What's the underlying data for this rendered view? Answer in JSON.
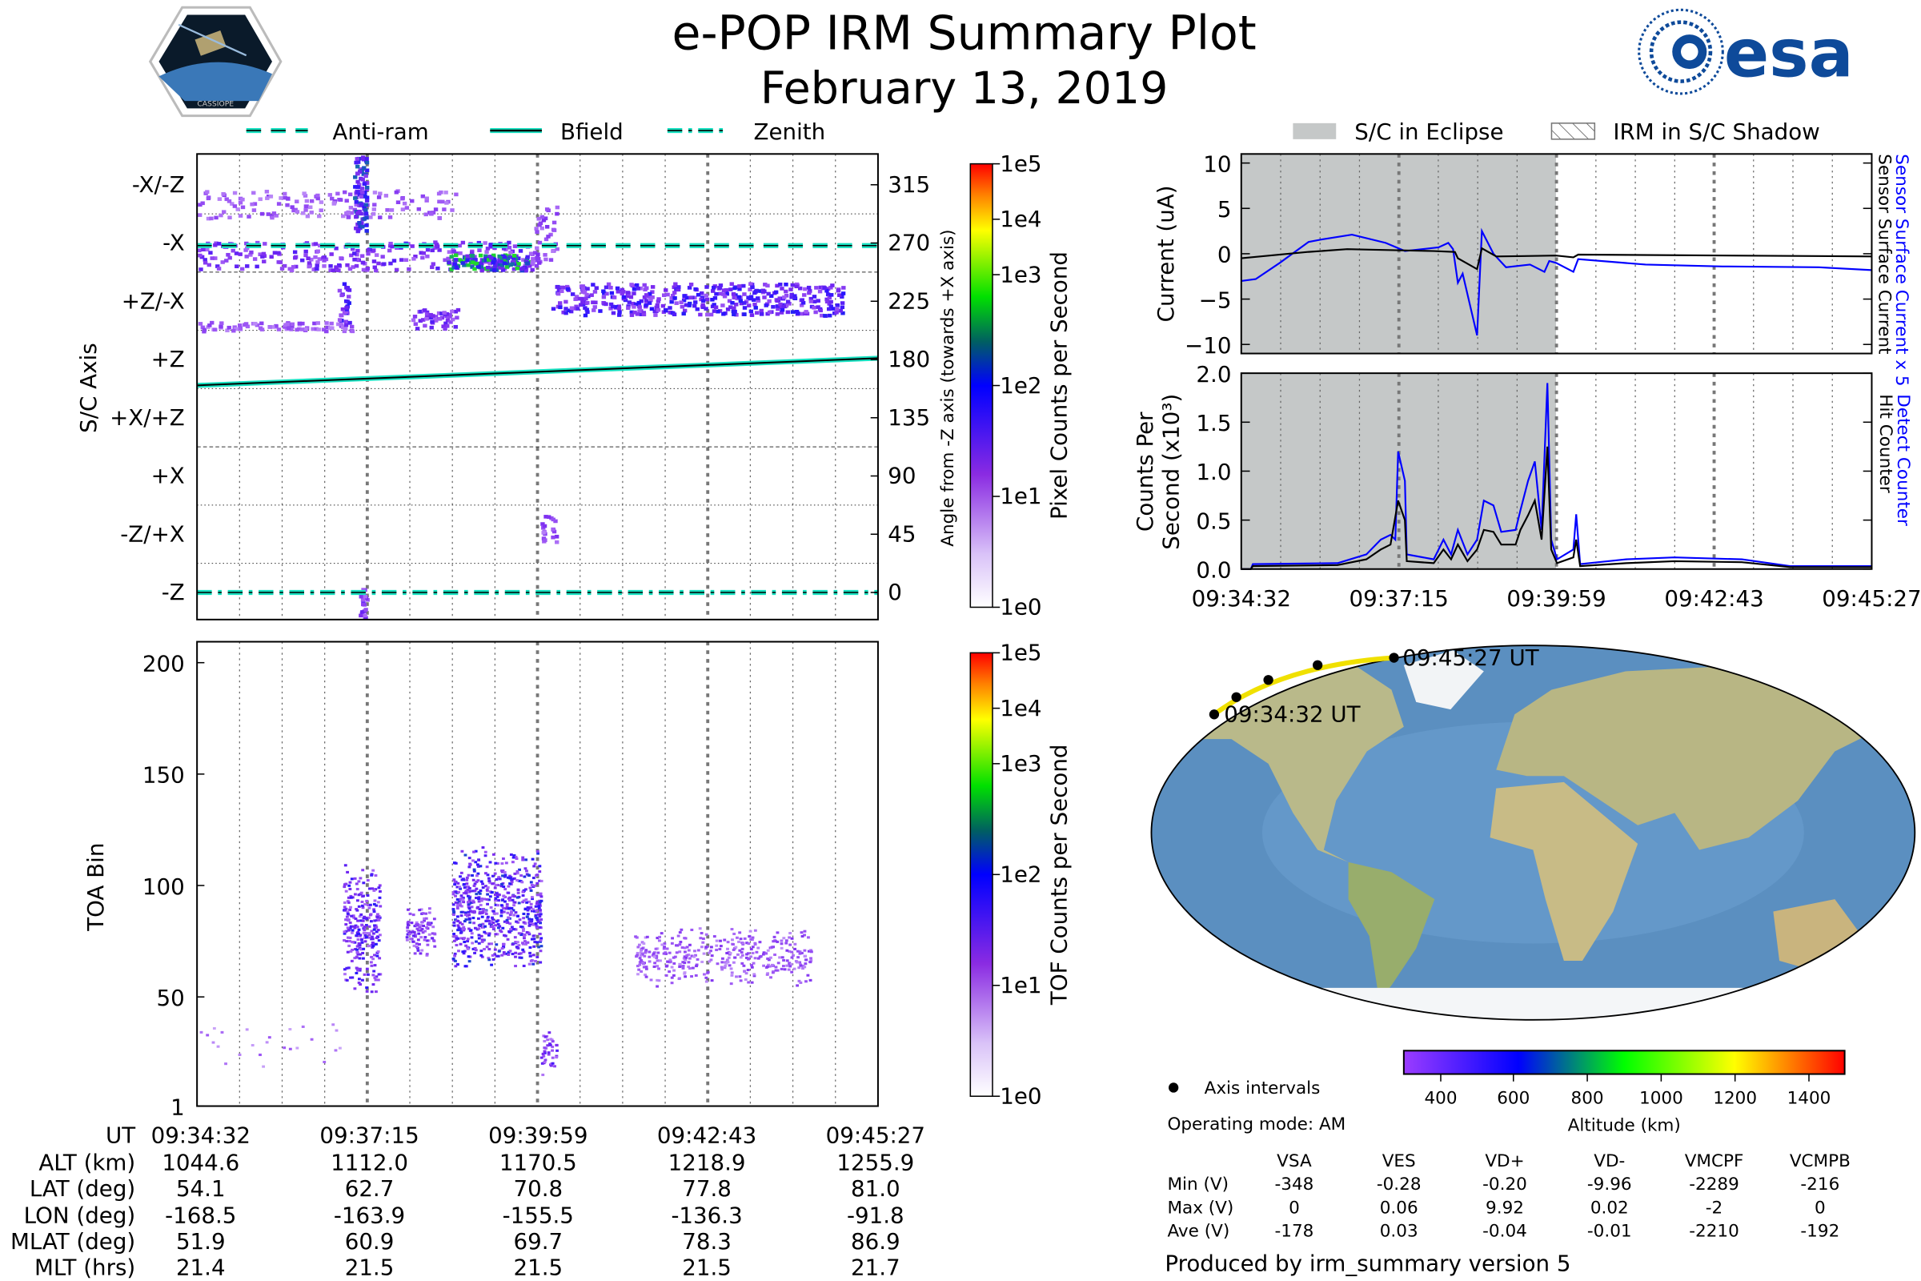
{
  "header": {
    "title": "e-POP IRM Summary Plot",
    "date": "February 13, 2019",
    "left_logo": "CASSIOPE",
    "right_logo": "esa"
  },
  "colors": {
    "blue_series": "#0000ff",
    "black_series": "#000000",
    "eclipse": "#c5c8c8",
    "bfield": "#17e0c0",
    "track": "#f0e000"
  },
  "chart_data": [
    {
      "id": "sc-axis",
      "type": "heatmap",
      "legend": [
        "Anti-ram",
        "Bfield",
        "Zenith"
      ],
      "ylabel": "S/C Axis",
      "ylabel_right": "Angle from -Z axis (towards +X axis)",
      "axis_labels": [
        "-X/-Z",
        "-X",
        "+Z/-X",
        "+Z",
        "+X/+Z",
        "+X",
        "-Z/+X",
        "-Z"
      ],
      "right_ticks": [
        "315",
        "270",
        "225",
        "180",
        "135",
        "90",
        "45",
        "0"
      ],
      "right_tick_values": [
        315,
        270,
        225,
        180,
        135,
        90,
        45,
        0
      ],
      "ylim": [
        -21,
        339
      ],
      "xlim_seconds": [
        0,
        655
      ],
      "antiram_angle": 268,
      "zenith_angle": 0,
      "bfield": [
        [
          0,
          160
        ],
        [
          655,
          181
        ]
      ],
      "patches": [
        {
          "t": [
            0,
            250
          ],
          "a": [
            290,
            312
          ],
          "n": 140,
          "i": 0.35
        },
        {
          "t": [
            150,
            162
          ],
          "a": [
            280,
            339
          ],
          "n": 90,
          "i": 0.7
        },
        {
          "t": [
            0,
            330
          ],
          "a": [
            250,
            272
          ],
          "n": 260,
          "i": 0.5
        },
        {
          "t": [
            240,
            320
          ],
          "a": [
            250,
            262
          ],
          "n": 140,
          "i": 0.9
        },
        {
          "t": [
            320,
            345
          ],
          "a": [
            255,
            300
          ],
          "n": 40,
          "i": 0.4
        },
        {
          "t": [
            340,
            620
          ],
          "a": [
            215,
            240
          ],
          "n": 420,
          "i": 0.6
        },
        {
          "t": [
            0,
            150
          ],
          "a": [
            203,
            210
          ],
          "n": 80,
          "i": 0.35
        },
        {
          "t": [
            135,
            145
          ],
          "a": [
            208,
            240
          ],
          "n": 30,
          "i": 0.6
        },
        {
          "t": [
            205,
            250
          ],
          "a": [
            205,
            220
          ],
          "n": 50,
          "i": 0.5
        },
        {
          "t": [
            330,
            345
          ],
          "a": [
            40,
            60
          ],
          "n": 20,
          "i": 0.4
        },
        {
          "t": [
            155,
            162
          ],
          "a": [
            -21,
            10
          ],
          "n": 20,
          "i": 0.5
        }
      ],
      "colorbar": {
        "label": "Pixel Counts per Second",
        "ticks": [
          "1e5",
          "1e4",
          "1e3",
          "1e2",
          "1e1",
          "1e0"
        ]
      }
    },
    {
      "id": "toa",
      "type": "heatmap",
      "ylabel": "TOA Bin",
      "yticks": [
        "200",
        "150",
        "100",
        "50",
        "1"
      ],
      "ytick_values": [
        200,
        150,
        100,
        50,
        1
      ],
      "ylim": [
        1,
        209
      ],
      "xlim_seconds": [
        0,
        655
      ],
      "patches": [
        {
          "t": [
            140,
            175
          ],
          "b": [
            50,
            112
          ],
          "n": 260,
          "i": 0.55
        },
        {
          "t": [
            200,
            228
          ],
          "b": [
            68,
            92
          ],
          "n": 90,
          "i": 0.45
        },
        {
          "t": [
            245,
            330
          ],
          "b": [
            60,
            118
          ],
          "n": 650,
          "i": 0.6
        },
        {
          "t": [
            330,
            345
          ],
          "b": [
            15,
            35
          ],
          "n": 40,
          "i": 0.5
        },
        {
          "t": [
            420,
            590
          ],
          "b": [
            55,
            82
          ],
          "n": 380,
          "i": 0.35
        },
        {
          "t": [
            0,
            140
          ],
          "b": [
            15,
            40
          ],
          "n": 25,
          "i": 0.25
        }
      ],
      "colorbar": {
        "label": "TOF Counts per Second",
        "ticks": [
          "1e5",
          "1e4",
          "1e3",
          "1e2",
          "1e1",
          "1e0"
        ]
      }
    },
    {
      "id": "current",
      "type": "line",
      "legend": [
        "S/C in Eclipse",
        "IRM in S/C Shadow"
      ],
      "ylabel": "Current (uA)",
      "yticks": [
        "10",
        "5",
        "0",
        "−5",
        "−10"
      ],
      "ytick_values": [
        10,
        5,
        0,
        -5,
        -10
      ],
      "ylim": [
        -11,
        11
      ],
      "eclipse_seconds": [
        0,
        327
      ],
      "series": [
        {
          "name": "Sensor Surface Current x 5",
          "color": "#0000ff",
          "points": [
            [
              0,
              -3
            ],
            [
              15,
              -2.8
            ],
            [
              40,
              -1
            ],
            [
              70,
              1.3
            ],
            [
              85,
              1.6
            ],
            [
              115,
              2.1
            ],
            [
              150,
              1.2
            ],
            [
              170,
              0.3
            ],
            [
              205,
              0.7
            ],
            [
              215,
              1.2
            ],
            [
              220,
              0.5
            ],
            [
              225,
              -3.2
            ],
            [
              230,
              -2.2
            ],
            [
              245,
              -9
            ],
            [
              250,
              2.5
            ],
            [
              262,
              0
            ],
            [
              275,
              -1.5
            ],
            [
              300,
              -1.2
            ],
            [
              315,
              -2
            ],
            [
              320,
              -0.8
            ],
            [
              327,
              -1
            ],
            [
              345,
              -2
            ],
            [
              350,
              -0.6
            ],
            [
              420,
              -1.2
            ],
            [
              500,
              -1.4
            ],
            [
              600,
              -1.5
            ],
            [
              655,
              -1.8
            ]
          ]
        },
        {
          "name": "Sensor Surface Current",
          "color": "#000000",
          "points": [
            [
              0,
              -0.5
            ],
            [
              70,
              0.2
            ],
            [
              110,
              0.5
            ],
            [
              200,
              0.3
            ],
            [
              222,
              0.2
            ],
            [
              225,
              -0.5
            ],
            [
              245,
              -1.7
            ],
            [
              250,
              0.6
            ],
            [
              265,
              -0.3
            ],
            [
              327,
              -0.2
            ],
            [
              345,
              -0.4
            ],
            [
              350,
              -0.1
            ],
            [
              655,
              -0.3
            ]
          ]
        }
      ]
    },
    {
      "id": "counts",
      "type": "line",
      "ylabel": "Counts Per Second (x10³)",
      "ylabel_line1": "Counts Per",
      "ylabel_line2": "Second (x10³)",
      "yticks": [
        "2.0",
        "1.5",
        "1.0",
        "0.5",
        "0.0"
      ],
      "ytick_values": [
        2,
        1.5,
        1,
        0.5,
        0
      ],
      "ylim": [
        0,
        2
      ],
      "xticks": [
        "09:34:32",
        "09:37:15",
        "09:39:59",
        "09:42:43",
        "09:45:27"
      ],
      "series": [
        {
          "name": "Detect Counter",
          "color": "#0000ff",
          "points": [
            [
              0,
              0
            ],
            [
              10,
              0
            ],
            [
              12,
              0.05
            ],
            [
              100,
              0.06
            ],
            [
              130,
              0.15
            ],
            [
              145,
              0.3
            ],
            [
              155,
              0.35
            ],
            [
              160,
              0.3
            ],
            [
              163,
              1.2
            ],
            [
              170,
              0.9
            ],
            [
              172,
              0.15
            ],
            [
              200,
              0.1
            ],
            [
              210,
              0.3
            ],
            [
              218,
              0.15
            ],
            [
              225,
              0.4
            ],
            [
              235,
              0.15
            ],
            [
              245,
              0.3
            ],
            [
              252,
              0.7
            ],
            [
              262,
              0.65
            ],
            [
              270,
              0.38
            ],
            [
              285,
              0.4
            ],
            [
              290,
              0.6
            ],
            [
              298,
              0.9
            ],
            [
              305,
              1.1
            ],
            [
              312,
              0.4
            ],
            [
              318,
              1.9
            ],
            [
              322,
              0.3
            ],
            [
              328,
              0.1
            ],
            [
              345,
              0.2
            ],
            [
              348,
              0.56
            ],
            [
              352,
              0.05
            ],
            [
              400,
              0.1
            ],
            [
              450,
              0.12
            ],
            [
              520,
              0.1
            ],
            [
              570,
              0.03
            ],
            [
              655,
              0.03
            ]
          ]
        },
        {
          "name": "Hit Counter",
          "color": "#000000",
          "points": [
            [
              0,
              0
            ],
            [
              10,
              0
            ],
            [
              12,
              0.03
            ],
            [
              100,
              0.04
            ],
            [
              130,
              0.1
            ],
            [
              145,
              0.2
            ],
            [
              155,
              0.25
            ],
            [
              163,
              0.7
            ],
            [
              170,
              0.5
            ],
            [
              172,
              0.08
            ],
            [
              200,
              0.06
            ],
            [
              210,
              0.2
            ],
            [
              218,
              0.1
            ],
            [
              225,
              0.25
            ],
            [
              235,
              0.08
            ],
            [
              245,
              0.2
            ],
            [
              252,
              0.4
            ],
            [
              262,
              0.38
            ],
            [
              270,
              0.25
            ],
            [
              285,
              0.25
            ],
            [
              290,
              0.4
            ],
            [
              298,
              0.55
            ],
            [
              305,
              0.7
            ],
            [
              312,
              0.3
            ],
            [
              318,
              1.25
            ],
            [
              322,
              0.2
            ],
            [
              328,
              0.06
            ],
            [
              345,
              0.12
            ],
            [
              348,
              0.3
            ],
            [
              352,
              0.03
            ],
            [
              400,
              0.06
            ],
            [
              450,
              0.08
            ],
            [
              520,
              0.07
            ],
            [
              570,
              0.02
            ],
            [
              655,
              0.02
            ]
          ]
        }
      ]
    }
  ],
  "ephemeris": {
    "row_labels": [
      "UT",
      "ALT (km)",
      "LAT (deg)",
      "LON (deg)",
      "MLAT (deg)",
      "MLT (hrs)"
    ],
    "columns": [
      [
        "09:34:32",
        "1044.6",
        "54.1",
        "-168.5",
        "51.9",
        "21.4"
      ],
      [
        "09:37:15",
        "1112.0",
        "62.7",
        "-163.9",
        "60.9",
        "21.5"
      ],
      [
        "09:39:59",
        "1170.5",
        "70.8",
        "-155.5",
        "69.7",
        "21.5"
      ],
      [
        "09:42:43",
        "1218.9",
        "77.8",
        "-136.3",
        "78.3",
        "21.5"
      ],
      [
        "09:45:27",
        "1255.9",
        "81.0",
        "-91.8",
        "86.9",
        "21.7"
      ]
    ]
  },
  "map": {
    "start_label": "09:34:32 UT",
    "end_label": "09:45:27 UT",
    "axis_intervals_label": "Axis intervals",
    "operating_mode": "Operating mode: AM",
    "altitude_colorbar": {
      "label": "Altitude (km)",
      "ticks": [
        "400",
        "600",
        "800",
        "1000",
        "1200",
        "1400"
      ]
    }
  },
  "voltages": {
    "headers": [
      "VSA",
      "VES",
      "VD+",
      "VD-",
      "VMCPF",
      "VCMPB"
    ],
    "rows": [
      {
        "label": "Min (V)",
        "values": [
          "-348",
          "-0.28",
          "-0.20",
          "-9.96",
          "-2289",
          "-216"
        ]
      },
      {
        "label": "Max (V)",
        "values": [
          "0",
          "0.06",
          "9.92",
          "0.02",
          "-2",
          "0"
        ]
      },
      {
        "label": "Ave (V)",
        "values": [
          "-178",
          "0.03",
          "-0.04",
          "-0.01",
          "-2210",
          "-192"
        ]
      }
    ]
  },
  "footer": "Produced by irm_summary version 5"
}
